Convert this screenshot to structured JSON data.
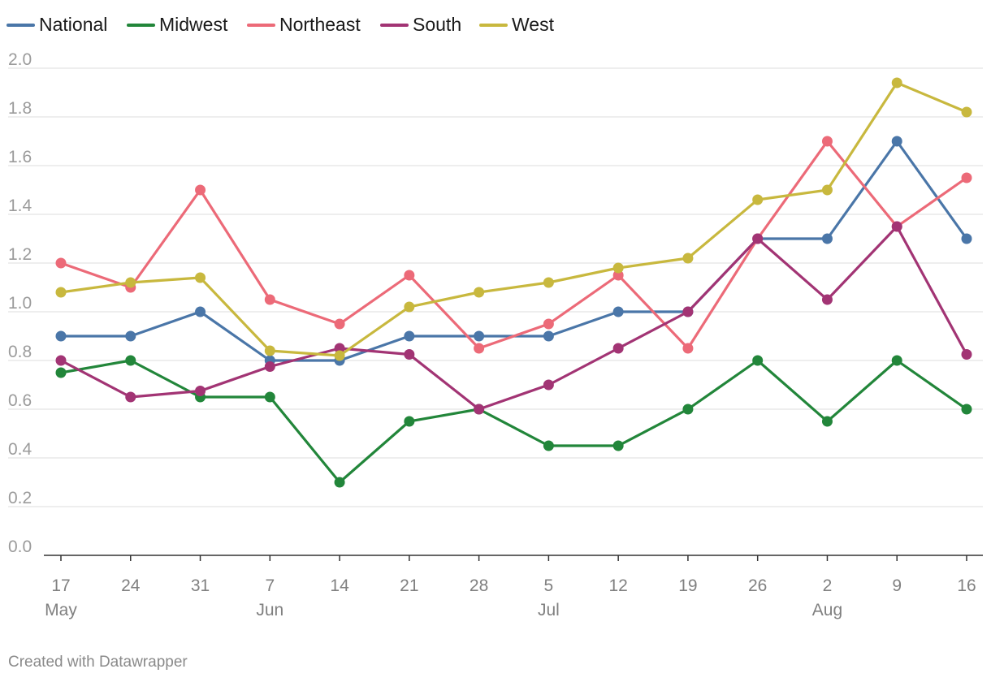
{
  "chart_data": {
    "type": "line",
    "x": [
      "17",
      "24",
      "31",
      "7",
      "14",
      "21",
      "28",
      "5",
      "12",
      "19",
      "26",
      "2",
      "9",
      "16"
    ],
    "x_month_labels": [
      "May",
      "",
      "",
      "Jun",
      "",
      "",
      "",
      "Jul",
      "",
      "",
      "",
      "Aug",
      "",
      ""
    ],
    "ylim": [
      0,
      2.0
    ],
    "yticks": [
      "0.0",
      "0.2",
      "0.4",
      "0.6",
      "0.8",
      "1.0",
      "1.2",
      "1.4",
      "1.6",
      "1.8",
      "2.0"
    ],
    "grid": true,
    "legend_position": "top-left",
    "series": [
      {
        "name": "National",
        "color": "#4a76a8",
        "values": [
          0.9,
          0.9,
          1.0,
          0.8,
          0.8,
          0.9,
          0.9,
          0.9,
          1.0,
          1.0,
          1.3,
          1.3,
          1.7,
          1.3
        ]
      },
      {
        "name": "Midwest",
        "color": "#22863a",
        "values": [
          0.75,
          0.8,
          0.65,
          0.65,
          0.3,
          0.55,
          0.6,
          0.45,
          0.45,
          0.6,
          0.8,
          0.55,
          0.8,
          0.6
        ]
      },
      {
        "name": "Northeast",
        "color": "#ec6a78",
        "values": [
          1.2,
          1.1,
          1.5,
          1.05,
          0.95,
          1.15,
          0.85,
          0.95,
          1.15,
          0.85,
          1.3,
          1.7,
          1.35,
          1.55
        ]
      },
      {
        "name": "South",
        "color": "#a23474",
        "values": [
          0.8,
          0.65,
          0.675,
          0.775,
          0.85,
          0.825,
          0.6,
          0.7,
          0.85,
          1.0,
          1.3,
          1.05,
          1.35,
          0.825
        ]
      },
      {
        "name": "West",
        "color": "#c8b83e",
        "values": [
          1.08,
          1.12,
          1.14,
          0.84,
          0.82,
          1.02,
          1.08,
          1.12,
          1.18,
          1.22,
          1.46,
          1.5,
          1.94,
          1.82
        ]
      }
    ]
  },
  "footer": {
    "credit": "Created with Datawrapper"
  }
}
